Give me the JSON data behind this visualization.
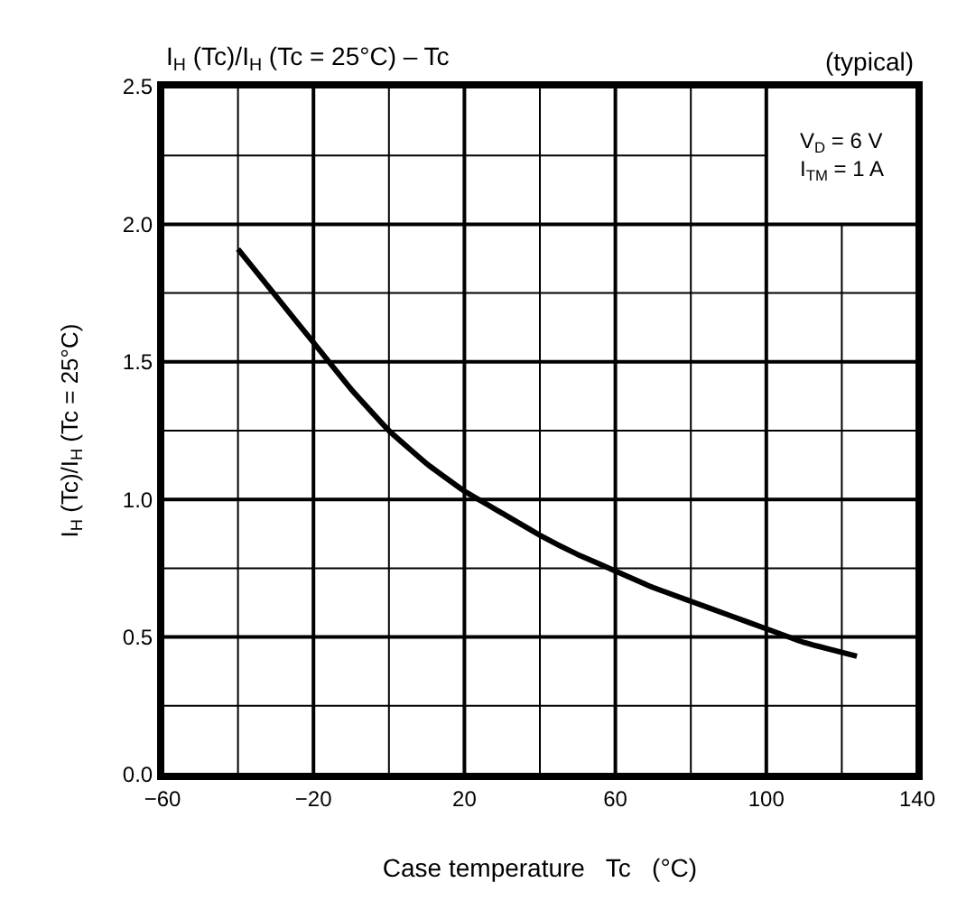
{
  "chart_data": {
    "type": "line",
    "title": "I$_{H}$ (Tc)/I$_{H}$ (Tc = 25°C) – Tc",
    "xlabel": "Case temperature   Tc   (°C)",
    "ylabel": "I$_{H}$ (Tc)/I$_{H}$ (Tc = 25°C)",
    "annotations": [
      "(typical)",
      "V$_{D}$ = 6 V",
      "I$_{TM}$ = 1 A"
    ],
    "x": [
      -40,
      -30,
      -20,
      -10,
      0,
      10,
      20,
      30,
      40,
      50,
      60,
      70,
      80,
      90,
      100,
      110,
      124
    ],
    "series": [
      {
        "color": "#000000",
        "values": [
          1.91,
          1.74,
          1.57,
          1.4,
          1.25,
          1.13,
          1.03,
          0.95,
          0.87,
          0.8,
          0.74,
          0.68,
          0.63,
          0.58,
          0.53,
          0.48,
          0.43
        ]
      }
    ],
    "xlim": [
      -60,
      140
    ],
    "ylim": [
      0,
      2.5
    ],
    "xticks": [
      {
        "value": -60,
        "label": "−60"
      },
      {
        "value": -40,
        "label": null
      },
      {
        "value": -20,
        "label": "−20"
      },
      {
        "value": 0,
        "label": null
      },
      20,
      {
        "value": 40,
        "label": null
      },
      60,
      {
        "value": 80,
        "label": null
      },
      100,
      {
        "value": 120,
        "label": null
      },
      140
    ],
    "yticks": [
      {
        "value": 0,
        "label": "0.0"
      },
      {
        "value": 0.25,
        "label": null
      },
      {
        "value": 0.5,
        "label": "0.5"
      },
      {
        "value": 0.75,
        "label": null
      },
      {
        "value": 1,
        "label": "1.0"
      },
      {
        "value": 1.25,
        "label": null
      },
      {
        "value": 1.5,
        "label": "1.5"
      },
      {
        "value": 1.75,
        "label": null
      },
      {
        "value": 2,
        "label": "2.0"
      },
      {
        "value": 2.25,
        "label": null
      },
      {
        "value": 2.5,
        "label": "2.5"
      }
    ],
    "grid": true,
    "marker": "none",
    "line_style": "solid"
  }
}
